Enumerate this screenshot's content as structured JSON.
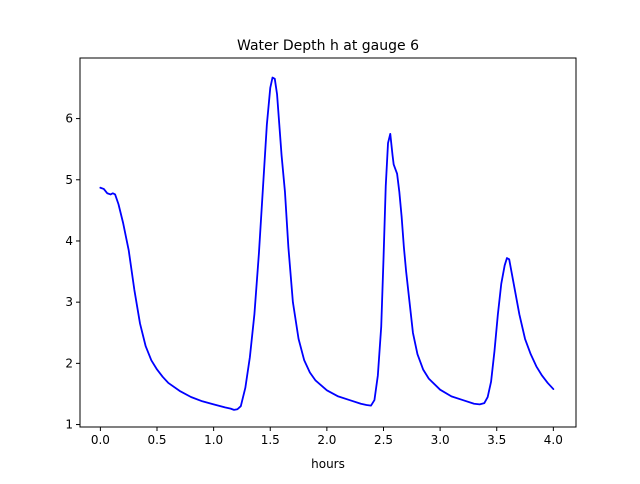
{
  "chart_data": {
    "type": "line",
    "title": "Water Depth h at gauge 6",
    "xlabel": "hours",
    "ylabel": "",
    "xlim": [
      -0.18,
      4.2
    ],
    "ylim": [
      0.96,
      6.99
    ],
    "xticks": [
      0.0,
      0.5,
      1.0,
      1.5,
      2.0,
      2.5,
      3.0,
      3.5,
      4.0
    ],
    "xtick_labels": [
      "0.0",
      "0.5",
      "1.0",
      "1.5",
      "2.0",
      "2.5",
      "3.0",
      "3.5",
      "4.0"
    ],
    "yticks": [
      1,
      2,
      3,
      4,
      5,
      6
    ],
    "ytick_labels": [
      "1",
      "2",
      "3",
      "4",
      "5",
      "6"
    ],
    "grid": false,
    "legend": "none",
    "series": [
      {
        "color": "#0000ff",
        "x": [
          0.0,
          0.03,
          0.06,
          0.09,
          0.11,
          0.13,
          0.16,
          0.2,
          0.25,
          0.3,
          0.35,
          0.4,
          0.45,
          0.5,
          0.55,
          0.6,
          0.7,
          0.8,
          0.9,
          1.0,
          1.1,
          1.15,
          1.18,
          1.21,
          1.24,
          1.28,
          1.32,
          1.36,
          1.4,
          1.44,
          1.47,
          1.5,
          1.52,
          1.54,
          1.56,
          1.58,
          1.6,
          1.63,
          1.66,
          1.7,
          1.75,
          1.8,
          1.85,
          1.9,
          2.0,
          2.1,
          2.2,
          2.3,
          2.35,
          2.39,
          2.42,
          2.45,
          2.48,
          2.5,
          2.52,
          2.54,
          2.56,
          2.58,
          2.59,
          2.6,
          2.62,
          2.64,
          2.66,
          2.68,
          2.7,
          2.73,
          2.76,
          2.8,
          2.85,
          2.9,
          3.0,
          3.1,
          3.2,
          3.3,
          3.35,
          3.39,
          3.42,
          3.45,
          3.48,
          3.51,
          3.54,
          3.57,
          3.59,
          3.61,
          3.63,
          3.66,
          3.7,
          3.75,
          3.8,
          3.85,
          3.9,
          3.95,
          4.0
        ],
        "y": [
          4.87,
          4.85,
          4.78,
          4.76,
          4.78,
          4.76,
          4.6,
          4.3,
          3.85,
          3.2,
          2.65,
          2.28,
          2.05,
          1.9,
          1.78,
          1.68,
          1.55,
          1.45,
          1.38,
          1.33,
          1.28,
          1.26,
          1.24,
          1.25,
          1.3,
          1.6,
          2.1,
          2.8,
          3.8,
          5.0,
          5.9,
          6.5,
          6.67,
          6.65,
          6.4,
          5.9,
          5.4,
          4.8,
          3.9,
          3.0,
          2.4,
          2.05,
          1.85,
          1.72,
          1.56,
          1.46,
          1.4,
          1.34,
          1.32,
          1.31,
          1.4,
          1.8,
          2.6,
          3.7,
          4.9,
          5.6,
          5.75,
          5.4,
          5.25,
          5.2,
          5.1,
          4.8,
          4.4,
          3.9,
          3.5,
          3.0,
          2.5,
          2.15,
          1.9,
          1.75,
          1.57,
          1.46,
          1.4,
          1.34,
          1.33,
          1.35,
          1.45,
          1.7,
          2.2,
          2.8,
          3.3,
          3.6,
          3.72,
          3.7,
          3.5,
          3.2,
          2.8,
          2.4,
          2.15,
          1.95,
          1.8,
          1.68,
          1.58
        ]
      }
    ]
  }
}
